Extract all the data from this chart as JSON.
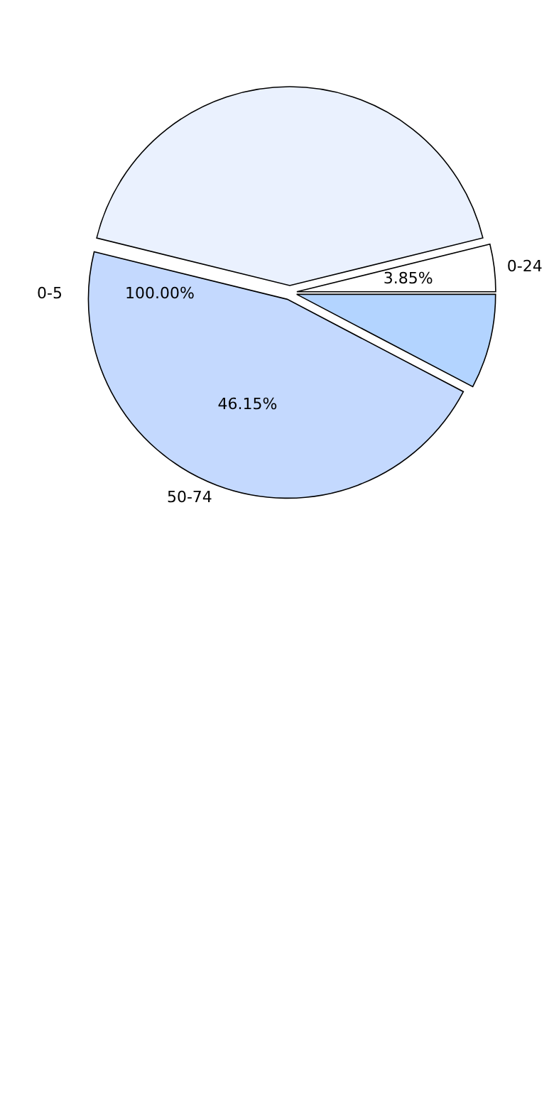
{
  "chart_data": {
    "type": "pie",
    "categories": [
      "0-24",
      null,
      "50-74",
      null
    ],
    "values": [
      3.85,
      42.31,
      46.15,
      7.69
    ],
    "colors": [
      "#ffffff",
      "#eaf1fe",
      "#c4d9fe",
      "#b3d4ff"
    ],
    "value_labels": [
      "3.85%",
      null,
      "46.15%",
      null
    ],
    "annotations": [
      "0-5",
      "100.00%"
    ],
    "legend": false
  }
}
